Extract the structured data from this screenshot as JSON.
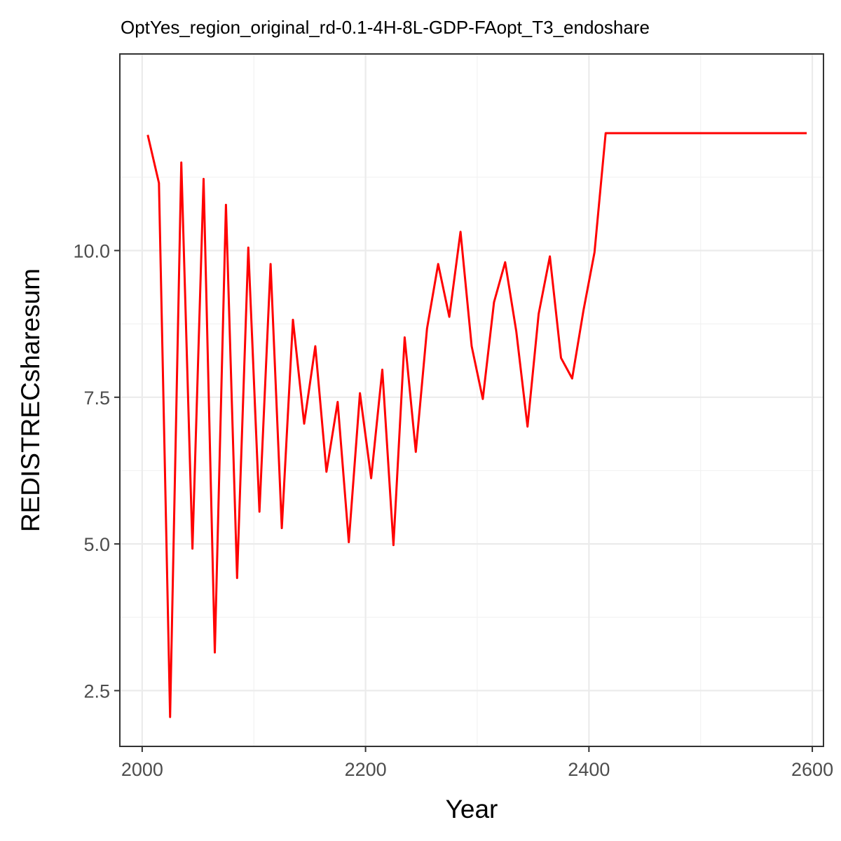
{
  "chart_data": {
    "type": "line",
    "title": "OptYes_region_original_rd-0.1-4H-8L-GDP-FAopt_T3_endoshare",
    "xlabel": "Year",
    "ylabel": "REDISTRECsharesum",
    "xlim": [
      1980,
      2610
    ],
    "ylim": [
      1.55,
      13.35
    ],
    "x_ticks": [
      2000,
      2200,
      2400,
      2600
    ],
    "x_tick_labels": [
      "2000",
      "2200",
      "2400",
      "2600"
    ],
    "y_ticks": [
      2.5,
      5.0,
      7.5,
      10.0
    ],
    "y_tick_labels": [
      "2.5",
      "5.0",
      "7.5",
      "10.0"
    ],
    "grid": true,
    "legend": "none",
    "colors": {
      "series": "#ff0000"
    },
    "series": [
      {
        "x": [
          2005,
          2015,
          2025,
          2035,
          2045,
          2055,
          2065,
          2075,
          2085,
          2095,
          2105,
          2115,
          2125,
          2135,
          2145,
          2155,
          2165,
          2175,
          2185,
          2195,
          2205,
          2215,
          2225,
          2235,
          2245,
          2255,
          2265,
          2275,
          2285,
          2295,
          2305,
          2315,
          2325,
          2335,
          2345,
          2355,
          2365,
          2375,
          2385,
          2395,
          2405,
          2415,
          2595
        ],
        "y": [
          11.97,
          11.15,
          2.05,
          11.5,
          4.92,
          11.22,
          3.15,
          10.78,
          4.42,
          10.05,
          5.55,
          9.77,
          5.27,
          8.82,
          7.05,
          8.37,
          6.23,
          7.42,
          5.03,
          7.57,
          6.12,
          7.97,
          4.98,
          8.52,
          6.57,
          8.67,
          9.77,
          8.87,
          10.32,
          8.37,
          7.47,
          9.12,
          9.8,
          8.62,
          7.0,
          8.92,
          9.9,
          8.17,
          7.82,
          8.97,
          9.97,
          12.0,
          12.0
        ]
      }
    ]
  }
}
